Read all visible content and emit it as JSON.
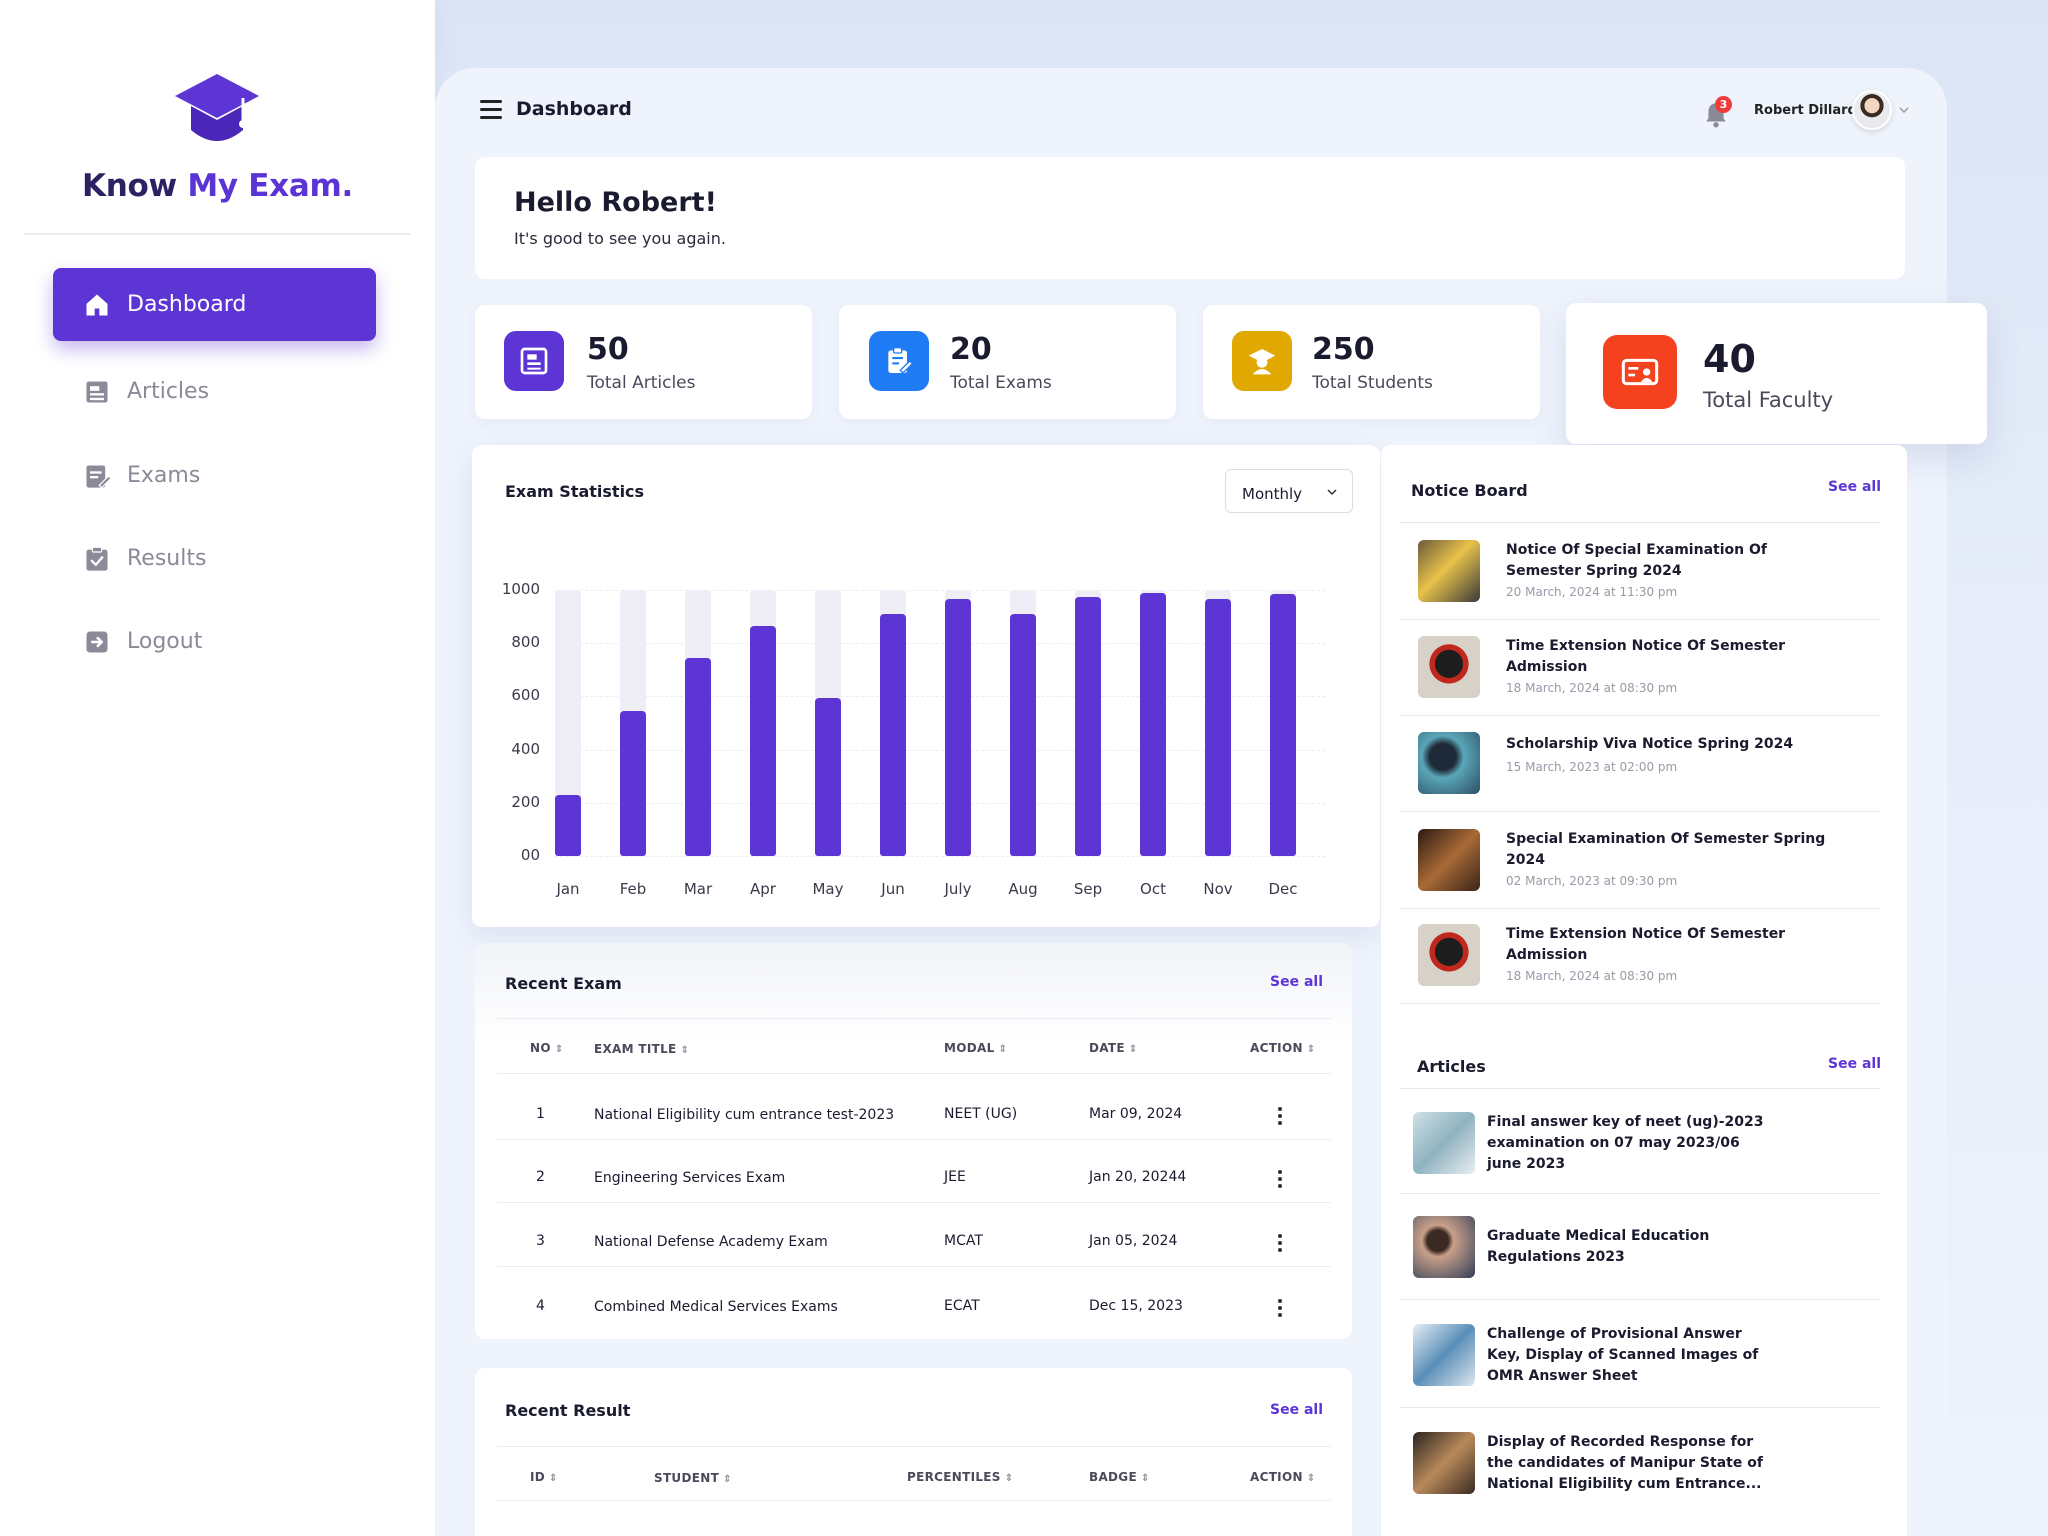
{
  "brand": {
    "part1": "Know ",
    "part2": "My Exam."
  },
  "nav": [
    {
      "label": "Dashboard",
      "icon": "home-icon",
      "active": true
    },
    {
      "label": "Articles",
      "icon": "articles-icon"
    },
    {
      "label": "Exams",
      "icon": "exams-icon"
    },
    {
      "label": "Results",
      "icon": "results-icon"
    },
    {
      "label": "Logout",
      "icon": "logout-icon"
    }
  ],
  "topbar": {
    "title": "Dashboard",
    "notifications": "3",
    "user_name": "Robert Dillard"
  },
  "greeting": {
    "title": "Hello Robert!",
    "subtitle": "It's good to see you again."
  },
  "stats": [
    {
      "value": "50",
      "label": "Total Articles",
      "color": "#5c35d4",
      "icon": "article-icon"
    },
    {
      "value": "20",
      "label": "Total Exams",
      "color": "#1f7cf4",
      "icon": "exam-edit-icon"
    },
    {
      "value": "250",
      "label": "Total Students",
      "color": "#e0a800",
      "icon": "student-icon"
    },
    {
      "value": "40",
      "label": "Total Faculty",
      "color": "#f4411e",
      "icon": "faculty-icon"
    }
  ],
  "exam_statistics": {
    "title": "Exam Statistics",
    "period": "Monthly"
  },
  "chart_data": {
    "type": "bar",
    "title": "Exam Statistics",
    "categories": [
      "Jan",
      "Feb",
      "Mar",
      "Apr",
      "May",
      "Jun",
      "July",
      "Aug",
      "Sep",
      "Oct",
      "Nov",
      "Dec"
    ],
    "values": [
      230,
      545,
      745,
      865,
      595,
      910,
      965,
      910,
      975,
      990,
      965,
      985
    ],
    "max_track": 1000,
    "y_ticks": [
      "1000",
      "800",
      "600",
      "400",
      "200",
      "00"
    ],
    "ylim": [
      0,
      1000
    ],
    "color": "#5c35d4",
    "track_color": "#efedf6",
    "grid": true
  },
  "recent_exam": {
    "title": "Recent Exam",
    "see_all": "See all",
    "headers": [
      "NO",
      "EXAM TITLE",
      "MODAL",
      "DATE",
      "ACTION"
    ],
    "rows": [
      {
        "no": "1",
        "title": "National Eligibility cum entrance test-2023",
        "modal": "NEET (UG)",
        "date": "Mar 09, 2024"
      },
      {
        "no": "2",
        "title": "Engineering Services Exam",
        "modal": "JEE",
        "date": "Jan 20, 20244"
      },
      {
        "no": "3",
        "title": "National Defense Academy Exam",
        "modal": "MCAT",
        "date": "Jan 05, 2024"
      },
      {
        "no": "4",
        "title": "Combined Medical Services Exams",
        "modal": "ECAT",
        "date": "Dec 15, 2023"
      }
    ]
  },
  "recent_result": {
    "title": "Recent Result",
    "see_all": "See all",
    "headers": [
      "ID",
      "STUDENT",
      "PERCENTILES",
      "BADGE",
      "ACTION"
    ]
  },
  "notice_board": {
    "title": "Notice Board",
    "see_all": "See all",
    "items": [
      {
        "title": "Notice Of Special Examination Of Semester Spring 2024",
        "date": "20 March, 2024 at 11:30 pm"
      },
      {
        "title": "Time Extension Notice Of  Semester Admission",
        "date": "18 March, 2024 at 08:30 pm"
      },
      {
        "title": "Scholarship Viva Notice Spring 2024",
        "date": "15 March, 2023 at 02:00 pm"
      },
      {
        "title": "Special Examination Of Semester Spring 2024",
        "date": "02 March, 2023 at 09:30 pm"
      },
      {
        "title": "Time Extension Notice Of  Semester Admission",
        "date": "18 March, 2024 at 08:30 pm"
      }
    ]
  },
  "articles": {
    "title": "Articles",
    "see_all": "See all",
    "items": [
      {
        "title": "Final answer key of neet (ug)-2023 examination on 07 may 2023/06 june 2023"
      },
      {
        "title": "Graduate Medical Education Regulations 2023"
      },
      {
        "title": "Challenge of Provisional Answer Key, Display of Scanned Images of OMR Answer Sheet"
      },
      {
        "title": "Display of Recorded Response for the candidates of Manipur State of National Eligibility cum Entrance..."
      }
    ]
  }
}
